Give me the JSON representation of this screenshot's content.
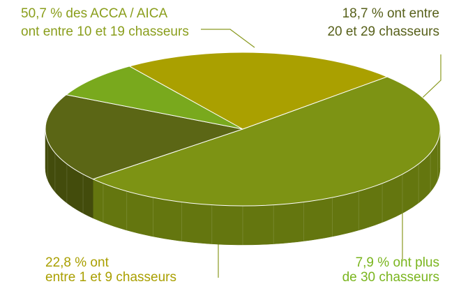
{
  "chart_data": {
    "type": "pie3d",
    "values": [
      50.7,
      18.7,
      7.9,
      22.8
    ],
    "value_labels": [
      [
        "50,7 % des ACCA / AICA",
        "ont entre 10 et 19 chasseurs"
      ],
      [
        "18,7 % ont entre",
        "20 et 29 chasseurs"
      ],
      [
        "7,9 % ont plus",
        "de 30 chasseurs"
      ],
      [
        "22,8 % ont",
        "entre 1 et 9 chasseurs"
      ]
    ],
    "colors": [
      "#7d9314",
      "#5b6615",
      "#79a91d",
      "#aaa000"
    ],
    "side_colors": [
      "#64760f",
      "#434c0c",
      "#5a8415",
      "#8c8400"
    ],
    "label_colors": [
      "#8a9e1c",
      "#57601a",
      "#7ab51e",
      "#a99f00"
    ]
  }
}
